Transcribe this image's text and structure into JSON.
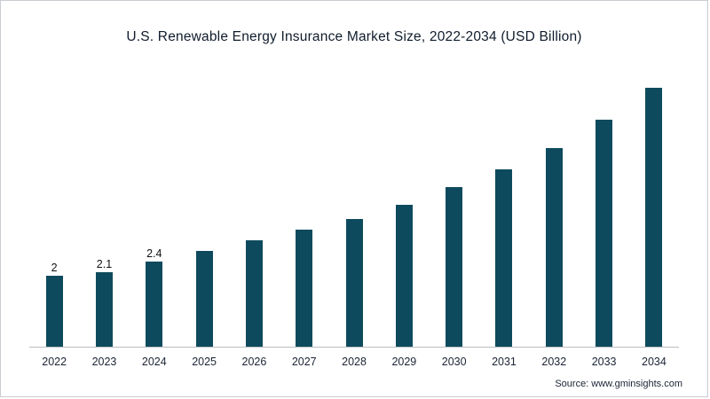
{
  "header": {
    "title": "U.S. Renewable Energy Insurance Market Size, 2022-2034 (USD Billion)"
  },
  "footer": {
    "source": "Source: www.gminsights.com"
  },
  "chart_data": {
    "type": "bar",
    "title": "U.S. Renewable Energy Insurance Market Size, 2022-2034 (USD Billion)",
    "categories": [
      "2022",
      "2023",
      "2024",
      "2025",
      "2026",
      "2027",
      "2028",
      "2029",
      "2030",
      "2031",
      "2032",
      "2033",
      "2034"
    ],
    "values": [
      2,
      2.1,
      2.4,
      2.7,
      3.0,
      3.3,
      3.6,
      4.0,
      4.5,
      5.0,
      5.6,
      6.4,
      7.3
    ],
    "data_labels": [
      "2",
      "2.1",
      "2.4",
      "",
      "",
      "",
      "",
      "",
      "",
      "",
      "",
      "",
      ""
    ],
    "xlabel": "",
    "ylabel": "",
    "ylim": [
      0,
      7.8
    ],
    "grid": false,
    "legend": false,
    "bar_color": "#0e4a5e",
    "axis_line_color": "#b9bdc2"
  }
}
